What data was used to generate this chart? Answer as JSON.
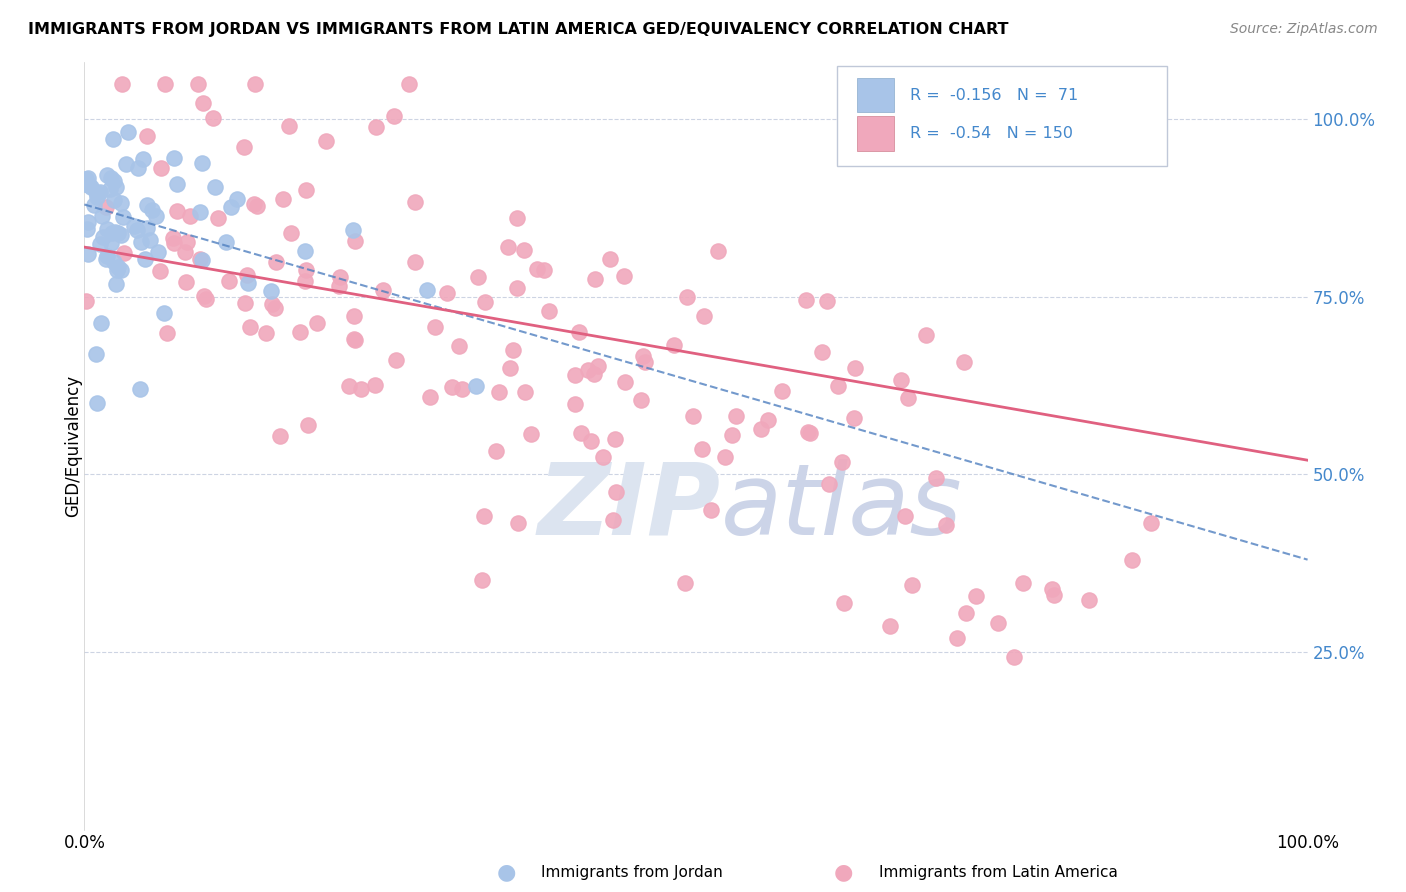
{
  "title": "IMMIGRANTS FROM JORDAN VS IMMIGRANTS FROM LATIN AMERICA GED/EQUIVALENCY CORRELATION CHART",
  "source": "Source: ZipAtlas.com",
  "ylabel": "GED/Equivalency",
  "jordan_R": -0.156,
  "jordan_N": 71,
  "latin_R": -0.54,
  "latin_N": 150,
  "jordan_color": "#a8c4e8",
  "jordan_edge_color": "#6090c8",
  "latin_color": "#f0a8bc",
  "latin_edge_color": "#e06080",
  "jordan_line_color": "#5080c0",
  "latin_line_color": "#e06080",
  "background_color": "#ffffff",
  "grid_color": "#c8d0e0",
  "right_axis_color": "#4488cc",
  "legend_text_color": "#4488cc",
  "right_ytick_labels": [
    "100.0%",
    "75.0%",
    "50.0%",
    "25.0%"
  ],
  "right_ytick_vals": [
    1.0,
    0.75,
    0.5,
    0.25
  ]
}
